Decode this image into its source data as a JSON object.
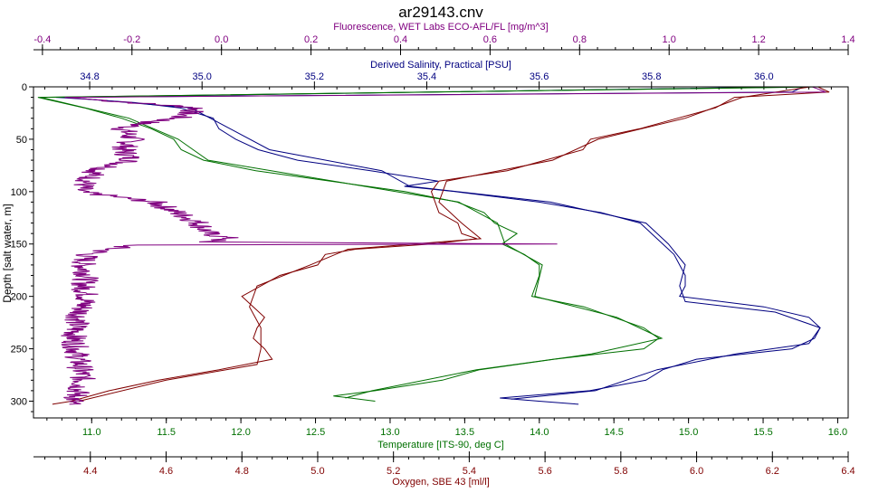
{
  "title": "ar29143.cnv",
  "colors": {
    "fluorescence": "#800080",
    "salinity": "#000080",
    "temperature": "#007000",
    "oxygen": "#800000",
    "axis": "#000000",
    "plot_border": "#000000"
  },
  "chart_data": {
    "type": "line",
    "title": "ar29143.cnv",
    "grid": false,
    "legend": "none",
    "y_axis": {
      "label": "Depth [salt water, m]",
      "range": [
        0,
        316
      ],
      "inverted": true,
      "ticks": [
        "0",
        "50",
        "100",
        "150",
        "200",
        "250",
        "300"
      ],
      "tick_values": [
        0,
        50,
        100,
        150,
        200,
        250,
        300
      ]
    },
    "x_axes": [
      {
        "key": "fluorescence",
        "label": "Fluorescence, WET Labs ECO-AFL/FL [mg/m^3]",
        "position": "top-outer",
        "range": [
          -0.42,
          1.4
        ],
        "ticks": [
          "-0.4",
          "-0.2",
          "0.0",
          "0.2",
          "0.4",
          "0.6",
          "0.8",
          "1.0",
          "1.2",
          "1.4"
        ],
        "tick_values": [
          -0.4,
          -0.2,
          0.0,
          0.2,
          0.4,
          0.6,
          0.8,
          1.0,
          1.2,
          1.4
        ]
      },
      {
        "key": "salinity",
        "label": "Derived Salinity, Practical [PSU]",
        "position": "top-inner",
        "range": [
          34.7,
          36.15
        ],
        "ticks": [
          "34.8",
          "35.0",
          "35.2",
          "35.4",
          "35.6",
          "35.8",
          "36.0"
        ],
        "tick_values": [
          34.8,
          35.0,
          35.2,
          35.4,
          35.6,
          35.8,
          36.0
        ]
      },
      {
        "key": "temperature",
        "label": "Temperature [ITS-90, deg C]",
        "position": "bottom-inner",
        "range": [
          10.61,
          16.07
        ],
        "ticks": [
          "11.0",
          "11.5",
          "12.0",
          "12.5",
          "13.0",
          "13.5",
          "14.0",
          "14.5",
          "15.0",
          "15.5",
          "16.0"
        ],
        "tick_values": [
          11.0,
          11.5,
          12.0,
          12.5,
          13.0,
          13.5,
          14.0,
          14.5,
          15.0,
          15.5,
          16.0
        ]
      },
      {
        "key": "oxygen",
        "label": "Oxygen, SBE 43 [ml/l]",
        "position": "bottom-outer",
        "range": [
          4.25,
          6.4
        ],
        "ticks": [
          "4.4",
          "4.6",
          "4.8",
          "5.0",
          "5.2",
          "5.4",
          "5.6",
          "5.8",
          "6.0",
          "6.2",
          "6.4"
        ],
        "tick_values": [
          4.4,
          4.6,
          4.8,
          5.0,
          5.2,
          5.4,
          5.6,
          5.8,
          6.0,
          6.2,
          6.4
        ]
      }
    ],
    "series": [
      {
        "key": "salinity",
        "axis": "salinity",
        "points": [
          [
            0,
            36.07
          ],
          [
            5,
            36.05
          ],
          [
            10,
            34.74
          ],
          [
            12,
            34.8
          ],
          [
            15,
            34.88
          ],
          [
            20,
            34.96
          ],
          [
            30,
            35.02
          ],
          [
            40,
            35.03
          ],
          [
            50,
            35.06
          ],
          [
            60,
            35.1
          ],
          [
            70,
            35.17
          ],
          [
            80,
            35.3
          ],
          [
            90,
            35.42
          ],
          [
            95,
            35.36
          ],
          [
            100,
            35.45
          ],
          [
            110,
            35.6
          ],
          [
            120,
            35.71
          ],
          [
            130,
            35.78
          ],
          [
            140,
            35.8
          ],
          [
            150,
            35.82
          ],
          [
            160,
            35.84
          ],
          [
            170,
            35.85
          ],
          [
            180,
            35.86
          ],
          [
            190,
            35.86
          ],
          [
            200,
            35.85
          ],
          [
            210,
            36.0
          ],
          [
            220,
            36.08
          ],
          [
            230,
            36.1
          ],
          [
            240,
            36.09
          ],
          [
            250,
            36.05
          ],
          [
            260,
            35.88
          ],
          [
            270,
            35.82
          ],
          [
            280,
            35.79
          ],
          [
            290,
            35.69
          ],
          [
            297,
            35.53
          ],
          [
            300,
            35.6
          ],
          [
            303,
            35.67
          ]
        ],
        "points2": [
          [
            0,
            36.05
          ],
          [
            10,
            34.76
          ],
          [
            20,
            34.98
          ],
          [
            40,
            35.05
          ],
          [
            60,
            35.12
          ],
          [
            80,
            35.32
          ],
          [
            95,
            35.37
          ],
          [
            110,
            35.62
          ],
          [
            130,
            35.79
          ],
          [
            150,
            35.83
          ],
          [
            170,
            35.86
          ],
          [
            190,
            35.85
          ],
          [
            205,
            35.86
          ],
          [
            215,
            36.02
          ],
          [
            230,
            36.1
          ],
          [
            245,
            36.08
          ],
          [
            255,
            35.95
          ],
          [
            270,
            35.81
          ],
          [
            290,
            35.7
          ],
          [
            298,
            35.55
          ]
        ]
      },
      {
        "key": "temperature",
        "axis": "temperature",
        "points": [
          [
            0,
            15.9
          ],
          [
            10,
            10.64
          ],
          [
            20,
            10.95
          ],
          [
            30,
            11.2
          ],
          [
            40,
            11.4
          ],
          [
            50,
            11.55
          ],
          [
            60,
            11.6
          ],
          [
            70,
            11.75
          ],
          [
            80,
            12.1
          ],
          [
            90,
            12.6
          ],
          [
            100,
            13.1
          ],
          [
            110,
            13.45
          ],
          [
            120,
            13.63
          ],
          [
            130,
            13.7
          ],
          [
            140,
            13.85
          ],
          [
            150,
            13.75
          ],
          [
            160,
            13.9
          ],
          [
            170,
            14.0
          ],
          [
            180,
            14.0
          ],
          [
            200,
            13.95
          ],
          [
            210,
            14.3
          ],
          [
            220,
            14.5
          ],
          [
            230,
            14.7
          ],
          [
            240,
            14.8
          ],
          [
            250,
            14.7
          ],
          [
            255,
            14.4
          ],
          [
            260,
            14.1
          ],
          [
            270,
            13.6
          ],
          [
            280,
            13.35
          ],
          [
            290,
            12.9
          ],
          [
            295,
            12.62
          ],
          [
            300,
            12.9
          ]
        ],
        "points2": [
          [
            0,
            15.85
          ],
          [
            10,
            10.66
          ],
          [
            30,
            11.25
          ],
          [
            50,
            11.58
          ],
          [
            70,
            11.78
          ],
          [
            90,
            12.62
          ],
          [
            110,
            13.46
          ],
          [
            130,
            13.72
          ],
          [
            150,
            13.77
          ],
          [
            170,
            14.02
          ],
          [
            200,
            13.97
          ],
          [
            220,
            14.52
          ],
          [
            240,
            14.82
          ],
          [
            255,
            14.35
          ],
          [
            270,
            13.58
          ],
          [
            290,
            12.88
          ],
          [
            297,
            12.7
          ]
        ]
      },
      {
        "key": "oxygen",
        "axis": "oxygen",
        "points": [
          [
            0,
            6.32
          ],
          [
            5,
            6.35
          ],
          [
            10,
            6.1
          ],
          [
            20,
            6.05
          ],
          [
            30,
            5.95
          ],
          [
            40,
            5.85
          ],
          [
            50,
            5.72
          ],
          [
            60,
            5.7
          ],
          [
            70,
            5.6
          ],
          [
            80,
            5.5
          ],
          [
            90,
            5.32
          ],
          [
            100,
            5.3
          ],
          [
            110,
            5.31
          ],
          [
            120,
            5.32
          ],
          [
            130,
            5.37
          ],
          [
            140,
            5.38
          ],
          [
            145,
            5.42
          ],
          [
            150,
            5.3
          ],
          [
            155,
            5.1
          ],
          [
            160,
            5.02
          ],
          [
            170,
            5.0
          ],
          [
            180,
            4.9
          ],
          [
            190,
            4.85
          ],
          [
            200,
            4.8
          ],
          [
            210,
            4.83
          ],
          [
            220,
            4.86
          ],
          [
            230,
            4.84
          ],
          [
            240,
            4.83
          ],
          [
            250,
            4.86
          ],
          [
            260,
            4.88
          ],
          [
            270,
            4.74
          ],
          [
            280,
            4.58
          ],
          [
            290,
            4.45
          ],
          [
            300,
            4.35
          ],
          [
            303,
            4.3
          ]
        ],
        "points2": [
          [
            0,
            6.3
          ],
          [
            10,
            6.12
          ],
          [
            30,
            5.97
          ],
          [
            50,
            5.74
          ],
          [
            70,
            5.62
          ],
          [
            90,
            5.34
          ],
          [
            110,
            5.32
          ],
          [
            130,
            5.38
          ],
          [
            145,
            5.43
          ],
          [
            155,
            5.08
          ],
          [
            170,
            4.98
          ],
          [
            190,
            4.84
          ],
          [
            210,
            4.82
          ],
          [
            230,
            4.85
          ],
          [
            250,
            4.85
          ],
          [
            265,
            4.84
          ],
          [
            280,
            4.6
          ],
          [
            300,
            4.37
          ]
        ]
      },
      {
        "key": "fluorescence",
        "axis": "fluorescence",
        "points": [
          [
            0,
            1.32
          ],
          [
            5,
            1.35
          ],
          [
            10,
            -0.35
          ],
          [
            20,
            -0.05
          ],
          [
            30,
            -0.1
          ],
          [
            35,
            -0.18
          ],
          [
            40,
            -0.22
          ],
          [
            50,
            -0.2
          ],
          [
            60,
            -0.22
          ],
          [
            70,
            -0.2
          ],
          [
            80,
            -0.28
          ],
          [
            90,
            -0.3
          ],
          [
            100,
            -0.32
          ],
          [
            110,
            -0.15
          ],
          [
            120,
            -0.1
          ],
          [
            130,
            -0.05
          ],
          [
            140,
            -0.03
          ],
          [
            145,
            0.02
          ],
          [
            148,
            -0.05
          ],
          [
            150,
            0.75
          ],
          [
            151,
            -0.2
          ],
          [
            155,
            -0.25
          ],
          [
            160,
            -0.3
          ],
          [
            170,
            -0.31
          ],
          [
            180,
            -0.3
          ],
          [
            190,
            -0.31
          ],
          [
            200,
            -0.3
          ],
          [
            220,
            -0.32
          ],
          [
            240,
            -0.33
          ],
          [
            260,
            -0.32
          ],
          [
            280,
            -0.31
          ],
          [
            300,
            -0.33
          ],
          [
            303,
            -0.34
          ]
        ],
        "noisy": true
      }
    ]
  }
}
